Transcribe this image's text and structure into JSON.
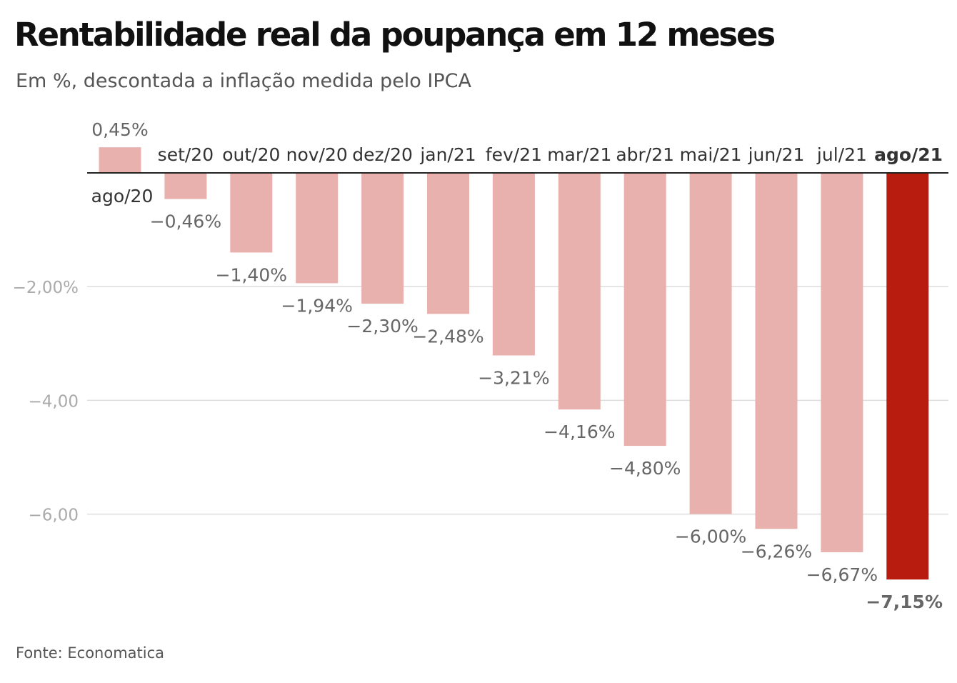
{
  "title": "Rentabilidade real da poupança em 12 meses",
  "subtitle": "Em %, descontada a inflação medida pelo IPCA",
  "source": "Fonte: Economatica",
  "colors": {
    "bar": "#e8b1ad",
    "highlight": "#b81c0e",
    "grid": "#dddddd",
    "zero_line": "#222222",
    "tick_label": "#aaaaaa",
    "value_label": "#666666",
    "category_label": "#333333"
  },
  "chart_data": {
    "type": "bar",
    "categories": [
      "ago/20",
      "set/20",
      "out/20",
      "nov/20",
      "dez/20",
      "jan/21",
      "fev/21",
      "mar/21",
      "abr/21",
      "mai/21",
      "jun/21",
      "jul/21",
      "ago/21"
    ],
    "values": [
      0.45,
      -0.46,
      -1.4,
      -1.94,
      -2.3,
      -2.48,
      -3.21,
      -4.16,
      -4.8,
      -6.0,
      -6.26,
      -6.67,
      -7.15
    ],
    "value_labels": [
      "0,45%",
      "−0,46%",
      "−1,40%",
      "−1,94%",
      "−2,30%",
      "−2,48%",
      "−3,21%",
      "−4,16%",
      "−4,80%",
      "−6,00%",
      "−6,26%",
      "−6,67%",
      "−7,15%"
    ],
    "highlight_index": 12,
    "y_ticks": [
      {
        "value": -2,
        "label": "−2,00%"
      },
      {
        "value": -4,
        "label": "−4,00"
      },
      {
        "value": -6,
        "label": "−6,00"
      }
    ],
    "ylim": [
      -7.15,
      0.45
    ],
    "grid": true,
    "xlabel": "",
    "ylabel": ""
  }
}
